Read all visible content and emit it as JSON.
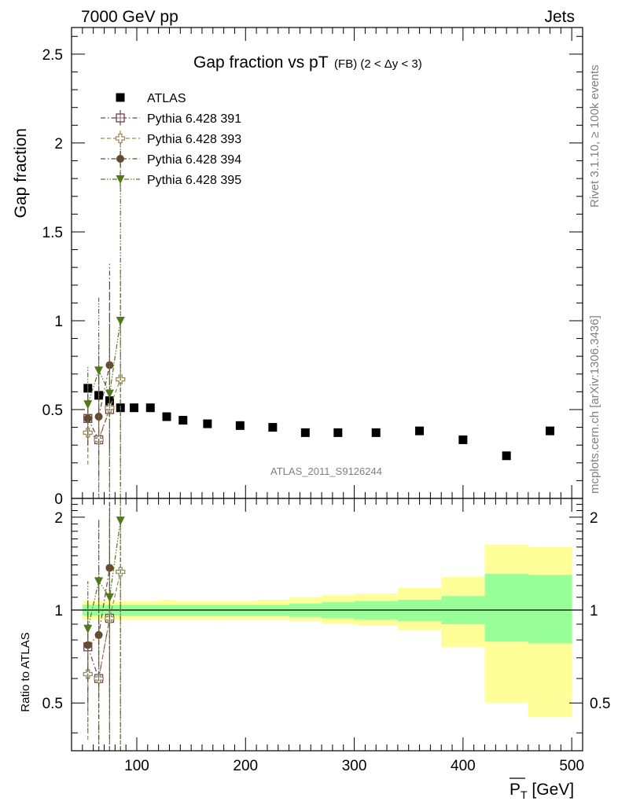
{
  "header": {
    "left": "7000 GeV pp",
    "right": "Jets"
  },
  "side_labels": {
    "top": "Rivet 3.1.10, ≥ 100k events",
    "bottom": "mcplots.cern.ch [arXiv:1306.3436]"
  },
  "watermark": "ATLAS_2011_S9126244",
  "chart_data": [
    {
      "type": "scatter",
      "title": "Gap fraction vs pT",
      "subtitle": "(FB) (2 < Δy < 3)",
      "ylabel": "Gap fraction",
      "xlim": [
        40,
        510
      ],
      "ylim": [
        0,
        2.65
      ],
      "yticks": [
        0.5,
        1,
        1.5,
        2,
        2.5
      ],
      "ytick_labels": [
        "0.5",
        "1",
        "1.5",
        "2",
        "2.5"
      ],
      "extra_bottom_label": "0",
      "legend_placement": "top-left",
      "series": [
        {
          "name": "ATLAS",
          "color": "#000000",
          "marker": "filled-square",
          "points": [
            {
              "x": 55,
              "y": 0.62
            },
            {
              "x": 65,
              "y": 0.58
            },
            {
              "x": 75,
              "y": 0.55
            },
            {
              "x": 85,
              "y": 0.51
            },
            {
              "x": 97.5,
              "y": 0.51
            },
            {
              "x": 112.5,
              "y": 0.51
            },
            {
              "x": 127.5,
              "y": 0.46
            },
            {
              "x": 142.5,
              "y": 0.44
            },
            {
              "x": 165,
              "y": 0.42
            },
            {
              "x": 195,
              "y": 0.41
            },
            {
              "x": 225,
              "y": 0.4
            },
            {
              "x": 255,
              "y": 0.37
            },
            {
              "x": 285,
              "y": 0.37
            },
            {
              "x": 320,
              "y": 0.37
            },
            {
              "x": 360,
              "y": 0.38
            },
            {
              "x": 400,
              "y": 0.33
            },
            {
              "x": 440,
              "y": 0.24
            },
            {
              "x": 480,
              "y": 0.38
            }
          ]
        },
        {
          "name": "Pythia 6.428 391",
          "color": "#6f3f4f",
          "marker": "open-square",
          "dash": "dashdot",
          "points": [
            {
              "x": 55,
              "y": 0.45,
              "lo": 0.26,
              "hi": 0.64
            },
            {
              "x": 65,
              "y": 0.33,
              "lo": 0.0,
              "hi": 0.9
            },
            {
              "x": 75,
              "y": 0.5,
              "lo": 0.0,
              "hi": 1.32
            }
          ]
        },
        {
          "name": "Pythia 6.428 393",
          "color": "#9a8a58",
          "marker": "open-cross",
          "dash": "dashed",
          "points": [
            {
              "x": 55,
              "y": 0.37,
              "lo": 0.19,
              "hi": 0.56
            },
            {
              "x": 65,
              "y": 0.33,
              "lo": 0.0,
              "hi": 0.72
            },
            {
              "x": 75,
              "y": 0.51,
              "lo": 0.0,
              "hi": 0.95
            },
            {
              "x": 85,
              "y": 0.67,
              "lo": 0.07,
              "hi": 1.28
            }
          ]
        },
        {
          "name": "Pythia 6.428 394",
          "color": "#654a32",
          "marker": "filled-circle",
          "dash": "dashdot",
          "points": [
            {
              "x": 55,
              "y": 0.45,
              "lo": 0.3,
              "hi": 0.62
            },
            {
              "x": 65,
              "y": 0.46,
              "lo": 0.13,
              "hi": 0.8
            },
            {
              "x": 75,
              "y": 0.75,
              "lo": 0.28,
              "hi": 1.22
            }
          ]
        },
        {
          "name": "Pythia 6.428 395",
          "color": "#4f7a1c",
          "marker": "filled-triangle-down",
          "dash": "dashdotdot",
          "points": [
            {
              "x": 55,
              "y": 0.53,
              "lo": 0.35,
              "hi": 0.74
            },
            {
              "x": 65,
              "y": 0.72,
              "lo": 0.31,
              "hi": 1.13
            },
            {
              "x": 75,
              "y": 0.59,
              "lo": 0.06,
              "hi": 1.1
            },
            {
              "x": 85,
              "y": 1.0,
              "lo": 0.0,
              "hi": 2.0
            }
          ]
        }
      ]
    },
    {
      "type": "scatter",
      "ylabel": "Ratio to ATLAS",
      "xlabel": "P_T [GeV]",
      "xlabel_main": "P",
      "xlabel_sub": "T",
      "xlabel_unit": " [GeV]",
      "xlim": [
        40,
        510
      ],
      "ylim": [
        0.35,
        2.3
      ],
      "log_y": true,
      "xticks": [
        100,
        200,
        300,
        400,
        500
      ],
      "xtick_labels": [
        "100",
        "200",
        "300",
        "400",
        "500"
      ],
      "yticks": [
        0.5,
        1,
        2
      ],
      "ytick_labels": [
        "0.5",
        "1",
        "2"
      ],
      "bands": {
        "edges": [
          50,
          60,
          70,
          80,
          90,
          105,
          120,
          135,
          150,
          180,
          210,
          240,
          270,
          300,
          340,
          380,
          420,
          460,
          500
        ],
        "stat_lo": [
          0.96,
          0.96,
          0.96,
          0.96,
          0.96,
          0.96,
          0.96,
          0.96,
          0.96,
          0.96,
          0.96,
          0.95,
          0.94,
          0.93,
          0.92,
          0.9,
          0.79,
          0.78
        ],
        "stat_hi": [
          1.04,
          1.04,
          1.04,
          1.04,
          1.04,
          1.04,
          1.04,
          1.04,
          1.04,
          1.04,
          1.04,
          1.05,
          1.06,
          1.07,
          1.08,
          1.11,
          1.31,
          1.3
        ],
        "syst_lo": [
          0.93,
          0.93,
          0.93,
          0.93,
          0.93,
          0.93,
          0.93,
          0.93,
          0.93,
          0.93,
          0.93,
          0.92,
          0.9,
          0.89,
          0.86,
          0.76,
          0.5,
          0.45
        ],
        "syst_hi": [
          1.07,
          1.07,
          1.07,
          1.07,
          1.07,
          1.07,
          1.08,
          1.07,
          1.07,
          1.07,
          1.08,
          1.1,
          1.12,
          1.13,
          1.18,
          1.28,
          1.63,
          1.6
        ],
        "stat_color": "#99ff99",
        "syst_color": "#ffff99"
      },
      "series": [
        {
          "name": "Pythia 6.428 391",
          "color": "#6f3f4f",
          "marker": "open-square",
          "dash": "dashdot",
          "points": [
            {
              "x": 55,
              "y": 0.76,
              "lo": 0.4,
              "hi": 1.1
            },
            {
              "x": 65,
              "y": 0.6,
              "lo": 0.0,
              "hi": 1.96
            },
            {
              "x": 75,
              "y": 0.94,
              "lo": 0.0,
              "hi": 2.3
            }
          ]
        },
        {
          "name": "Pythia 6.428 393",
          "color": "#9a8a58",
          "marker": "open-cross",
          "dash": "dashed",
          "points": [
            {
              "x": 55,
              "y": 0.62,
              "lo": 0.38,
              "hi": 0.9
            },
            {
              "x": 65,
              "y": 0.6,
              "lo": 0.0,
              "hi": 1.24
            },
            {
              "x": 75,
              "y": 0.94,
              "lo": 0.0,
              "hi": 2.05
            },
            {
              "x": 85,
              "y": 1.33,
              "lo": 0.0,
              "hi": 2.3
            }
          ]
        },
        {
          "name": "Pythia 6.428 394",
          "color": "#654a32",
          "marker": "filled-circle",
          "dash": "dashdot",
          "points": [
            {
              "x": 55,
              "y": 0.77,
              "lo": 0.5,
              "hi": 1.06
            },
            {
              "x": 65,
              "y": 0.83,
              "lo": 0.26,
              "hi": 1.4
            },
            {
              "x": 75,
              "y": 1.37,
              "lo": 0.54,
              "hi": 2.2
            }
          ]
        },
        {
          "name": "Pythia 6.428 395",
          "color": "#4f7a1c",
          "marker": "filled-triangle-down",
          "dash": "dashdotdot",
          "points": [
            {
              "x": 55,
              "y": 0.87,
              "lo": 0.6,
              "hi": 1.24
            },
            {
              "x": 65,
              "y": 1.24,
              "lo": 0.55,
              "hi": 1.96
            },
            {
              "x": 75,
              "y": 1.1,
              "lo": 0.12,
              "hi": 2.02
            },
            {
              "x": 85,
              "y": 1.95,
              "lo": 0.0,
              "hi": 2.3
            }
          ]
        }
      ]
    }
  ]
}
